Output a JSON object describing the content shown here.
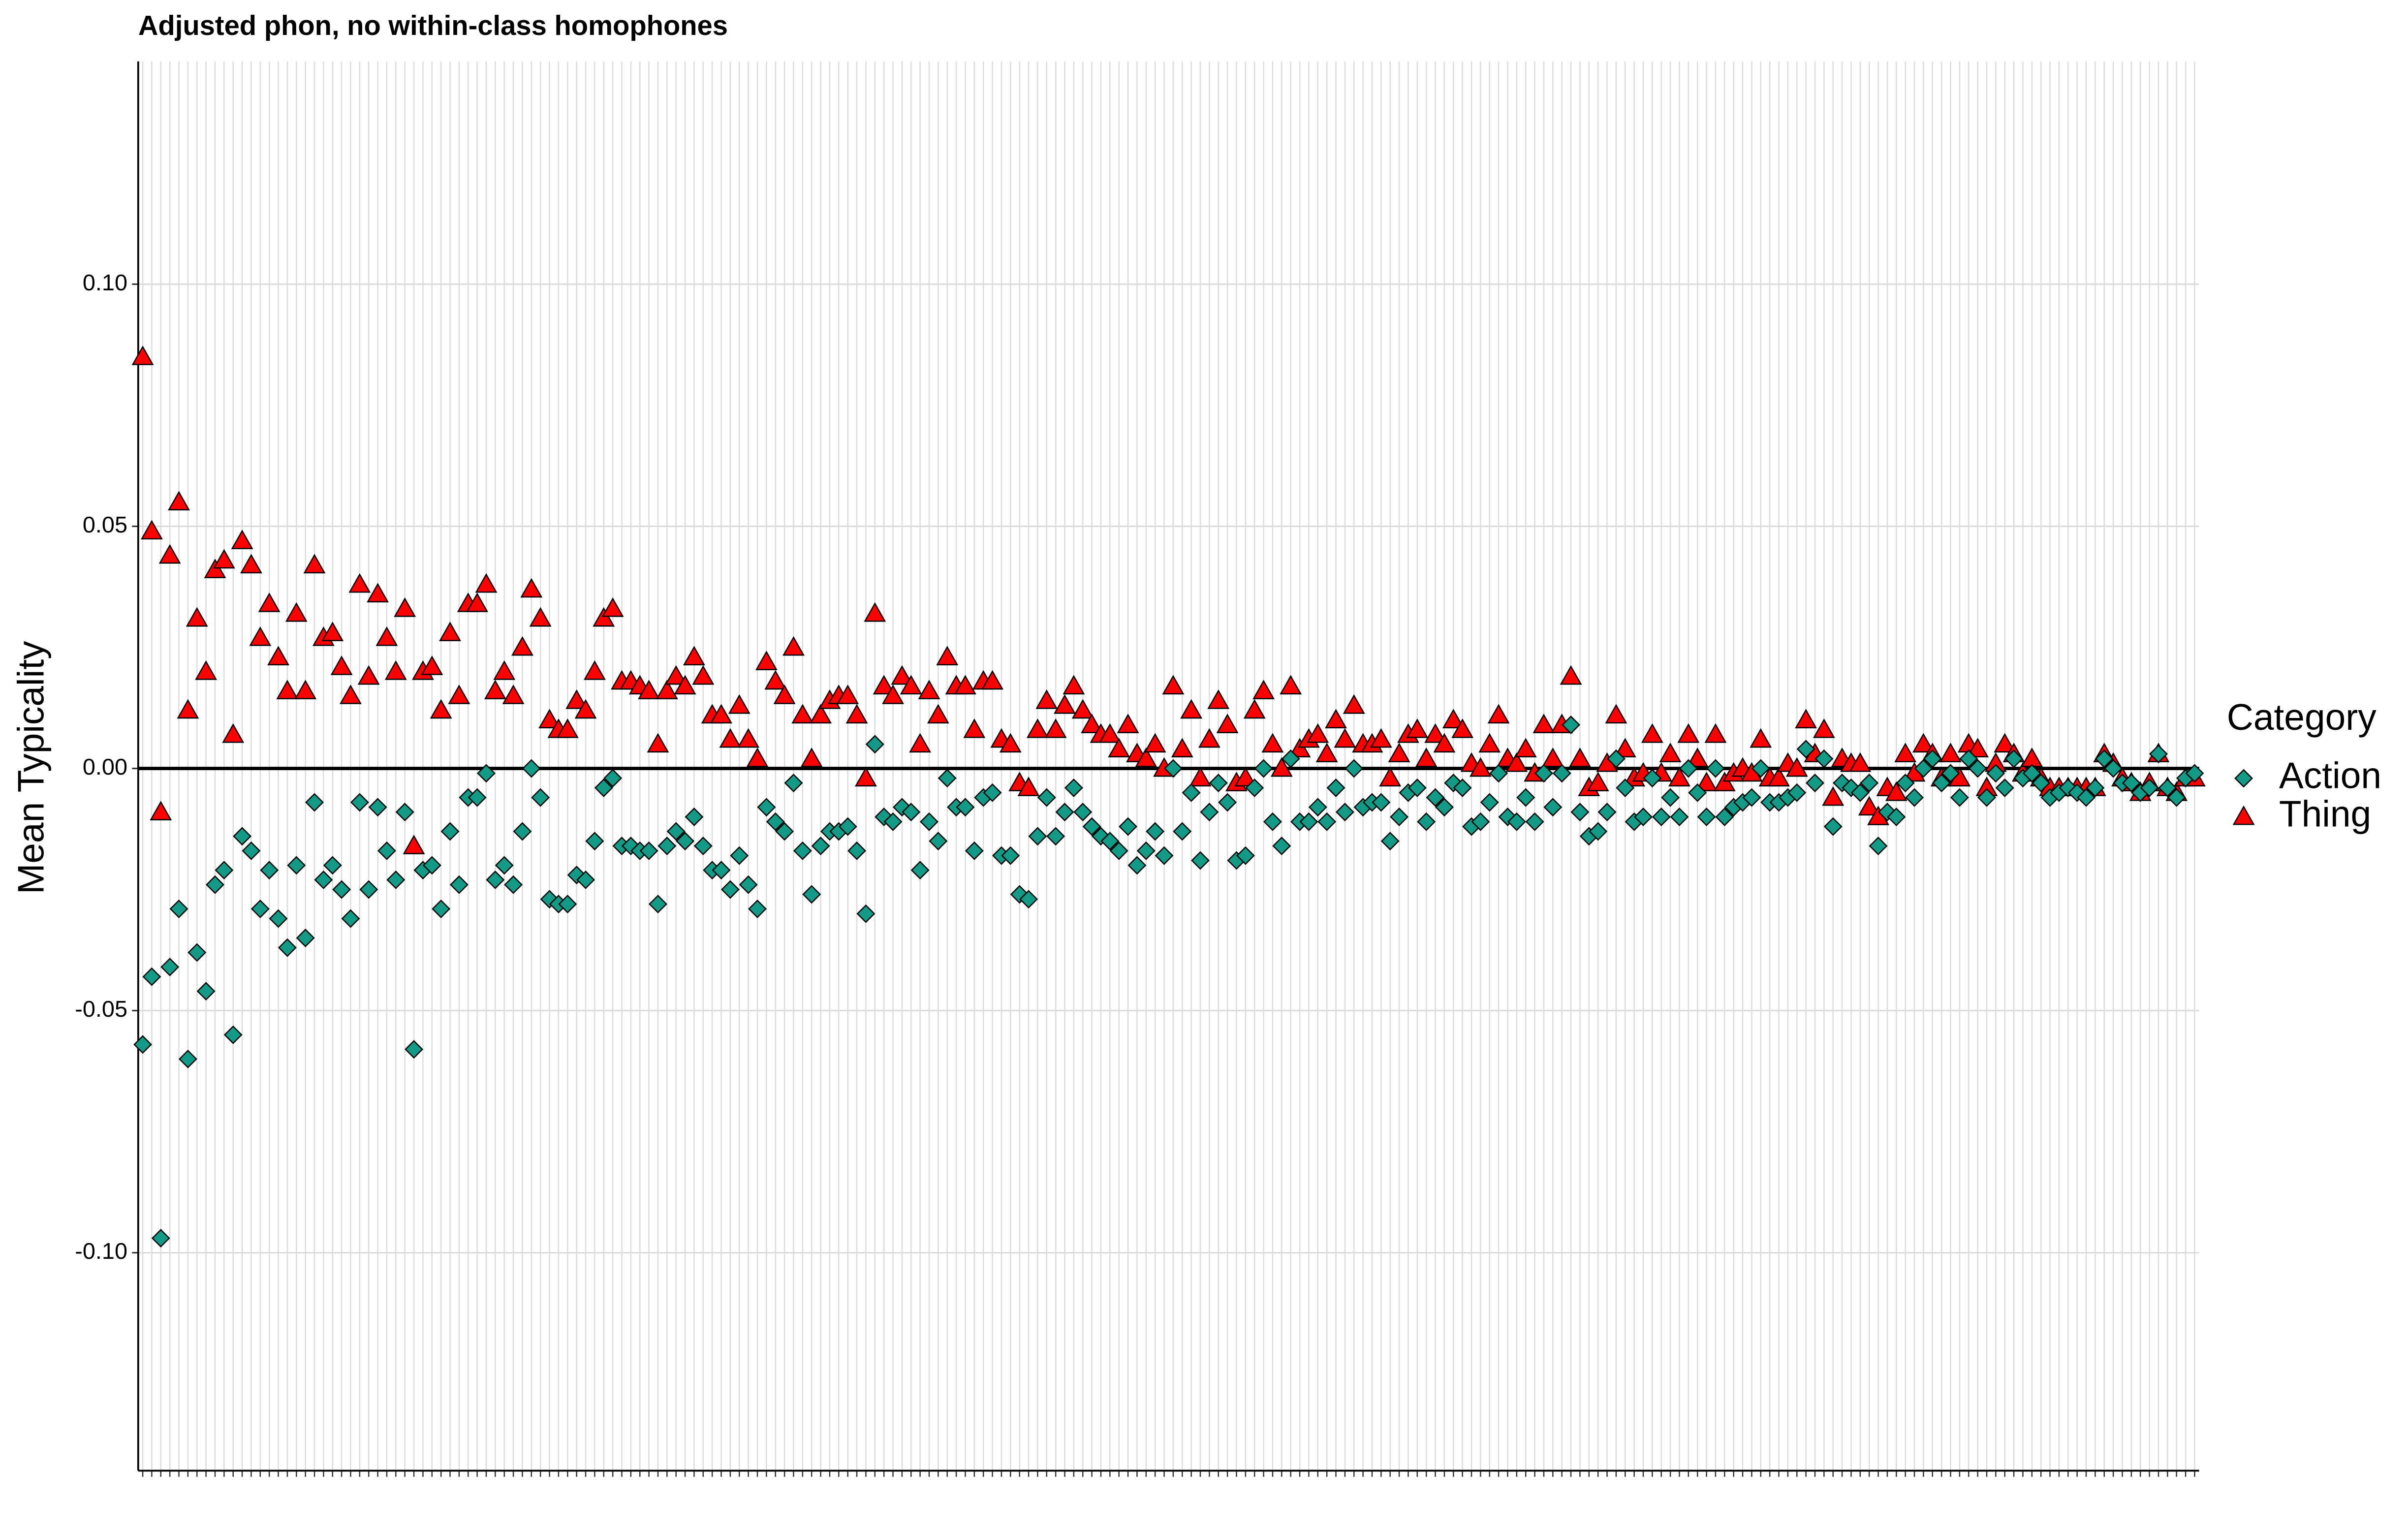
{
  "chart_data": {
    "type": "scatter",
    "title": "Adjusted phon, no within-class homophones",
    "y_label": "Mean Typicality",
    "legend_title": "Category",
    "legend_position": "right",
    "grid": true,
    "hline": 0,
    "ylim": [
      -0.145,
      0.146
    ],
    "yticks": [
      {
        "value": -0.1,
        "label": "-0.10"
      },
      {
        "value": -0.05,
        "label": "-0.05"
      },
      {
        "value": 0,
        "label": "0.00"
      },
      {
        "value": 0.05,
        "label": "0.05"
      },
      {
        "value": 0.1,
        "label": "0.10"
      }
    ],
    "categories": [
      null,
      null,
      null,
      null,
      null,
      null,
      null,
      null,
      null,
      null,
      null,
      null,
      null,
      null,
      null,
      null,
      null,
      null,
      null,
      null,
      null,
      null,
      null,
      null,
      null,
      null,
      null,
      null,
      null,
      null,
      null,
      null,
      null,
      null,
      null,
      null,
      null,
      null,
      null,
      null,
      null,
      null,
      null,
      null,
      null,
      null,
      null,
      null,
      null,
      null,
      null,
      null,
      null,
      null,
      null,
      null,
      null,
      null,
      null,
      null,
      null,
      null,
      null,
      null,
      null,
      null,
      null,
      null,
      null,
      null,
      null,
      null,
      null,
      null,
      null,
      null,
      null,
      null,
      null,
      null,
      null,
      null,
      null,
      null,
      null,
      null,
      null,
      null,
      null,
      null,
      null,
      null,
      null,
      null,
      null,
      null,
      null,
      null,
      null,
      null,
      null,
      null,
      null,
      null,
      null,
      null,
      null,
      null,
      null,
      null,
      null,
      null,
      null,
      null,
      null,
      null,
      null,
      null,
      null,
      null,
      null,
      null,
      null,
      null,
      null,
      null,
      null,
      null,
      null,
      null,
      null,
      null,
      null,
      null,
      null,
      null,
      null,
      null,
      null,
      null,
      null,
      null,
      null,
      null,
      null,
      null,
      null,
      null,
      null,
      null,
      null,
      null,
      null,
      null,
      null,
      null,
      null,
      null,
      null,
      null,
      null,
      null,
      null,
      null,
      null,
      null,
      null,
      null,
      null,
      null,
      null,
      null,
      null,
      null,
      null,
      null,
      null,
      null,
      null,
      null,
      null,
      null,
      null,
      null,
      null,
      null,
      null,
      null,
      null,
      null,
      null,
      null,
      null,
      null,
      null,
      null,
      null,
      null,
      null,
      null,
      null,
      null,
      null,
      null,
      null,
      null,
      null,
      null,
      null,
      null,
      null,
      null,
      null,
      null,
      null,
      null,
      null,
      null,
      null,
      null,
      null,
      null,
      null,
      null,
      null,
      null,
      null,
      null
    ],
    "series": [
      {
        "name": "Action",
        "color": "#139a86",
        "marker": "diamond",
        "values": [
          -0.057,
          -0.043,
          -0.097,
          -0.041,
          -0.029,
          -0.06,
          -0.038,
          -0.046,
          -0.024,
          -0.021,
          -0.055,
          -0.014,
          -0.017,
          -0.029,
          -0.021,
          -0.031,
          -0.037,
          -0.02,
          -0.035,
          -0.007,
          -0.023,
          -0.02,
          -0.025,
          -0.031,
          -0.007,
          -0.025,
          -0.008,
          -0.017,
          -0.023,
          -0.009,
          -0.058,
          -0.021,
          -0.02,
          -0.029,
          -0.013,
          -0.024,
          -0.006,
          -0.006,
          -0.001,
          -0.023,
          -0.02,
          -0.024,
          -0.013,
          0.0,
          -0.006,
          -0.027,
          -0.028,
          -0.028,
          -0.022,
          -0.023,
          -0.015,
          -0.004,
          -0.002,
          -0.016,
          -0.016,
          -0.017,
          -0.017,
          -0.028,
          -0.016,
          -0.013,
          -0.015,
          -0.01,
          -0.016,
          -0.021,
          -0.021,
          -0.025,
          -0.018,
          -0.024,
          -0.029,
          -0.008,
          -0.011,
          -0.013,
          -0.003,
          -0.017,
          -0.026,
          -0.016,
          -0.013,
          -0.013,
          -0.012,
          -0.017,
          -0.03,
          0.005,
          -0.01,
          -0.011,
          -0.008,
          -0.009,
          -0.021,
          -0.011,
          -0.015,
          -0.002,
          -0.008,
          -0.008,
          -0.017,
          -0.006,
          -0.005,
          -0.018,
          -0.018,
          -0.026,
          -0.027,
          -0.014,
          -0.006,
          -0.014,
          -0.009,
          -0.004,
          -0.009,
          -0.012,
          -0.014,
          -0.015,
          -0.017,
          -0.012,
          -0.02,
          -0.017,
          -0.013,
          -0.018,
          0.0,
          -0.013,
          -0.005,
          -0.019,
          -0.009,
          -0.003,
          -0.007,
          -0.019,
          -0.018,
          -0.004,
          0.0,
          -0.011,
          -0.016,
          0.002,
          -0.011,
          -0.011,
          -0.008,
          -0.011,
          -0.004,
          -0.009,
          0.0,
          -0.008,
          -0.007,
          -0.007,
          -0.015,
          -0.01,
          -0.005,
          -0.004,
          -0.011,
          -0.006,
          -0.008,
          -0.003,
          -0.004,
          -0.012,
          -0.011,
          -0.007,
          -0.001,
          -0.01,
          -0.011,
          -0.006,
          -0.011,
          -0.001,
          -0.008,
          -0.001,
          0.009,
          -0.009,
          -0.014,
          -0.013,
          -0.009,
          0.002,
          -0.004,
          -0.011,
          -0.01,
          -0.002,
          -0.01,
          -0.006,
          -0.01,
          0.0,
          -0.005,
          -0.01,
          0.0,
          -0.01,
          -0.008,
          -0.007,
          -0.006,
          0.0,
          -0.007,
          -0.007,
          -0.006,
          -0.005,
          0.004,
          -0.003,
          0.002,
          -0.012,
          -0.003,
          -0.004,
          -0.005,
          -0.003,
          -0.016,
          -0.009,
          -0.01,
          -0.003,
          -0.006,
          0.0,
          0.002,
          -0.003,
          -0.001,
          -0.006,
          0.002,
          0.0,
          -0.006,
          -0.001,
          -0.004,
          0.002,
          -0.002,
          -0.001,
          -0.003,
          -0.006,
          -0.005,
          -0.004,
          -0.005,
          -0.006,
          -0.004,
          0.002,
          0.0,
          -0.003,
          -0.003,
          -0.005,
          -0.004,
          0.003,
          -0.004,
          -0.006,
          -0.002,
          -0.001
        ]
      },
      {
        "name": "Thing",
        "color": "#ff0000",
        "marker": "triangle",
        "values": [
          0.085,
          0.049,
          -0.009,
          0.044,
          0.055,
          0.012,
          0.031,
          0.02,
          0.041,
          0.043,
          0.007,
          0.047,
          0.042,
          0.027,
          0.034,
          0.023,
          0.016,
          0.032,
          0.016,
          0.042,
          0.027,
          0.028,
          0.021,
          0.015,
          0.038,
          0.019,
          0.036,
          0.027,
          0.02,
          0.033,
          -0.016,
          0.02,
          0.021,
          0.012,
          0.028,
          0.015,
          0.034,
          0.034,
          0.038,
          0.016,
          0.02,
          0.015,
          0.025,
          0.037,
          0.031,
          0.01,
          0.008,
          0.008,
          0.014,
          0.012,
          0.02,
          0.031,
          0.033,
          0.018,
          0.018,
          0.017,
          0.016,
          0.005,
          0.016,
          0.019,
          0.017,
          0.023,
          0.019,
          0.011,
          0.011,
          0.006,
          0.013,
          0.006,
          0.002,
          0.022,
          0.018,
          0.015,
          0.025,
          0.011,
          0.002,
          0.011,
          0.014,
          0.015,
          0.015,
          0.011,
          -0.002,
          0.032,
          0.017,
          0.015,
          0.019,
          0.017,
          0.005,
          0.016,
          0.011,
          0.023,
          0.017,
          0.017,
          0.008,
          0.018,
          0.018,
          0.006,
          0.005,
          -0.003,
          -0.004,
          0.008,
          0.014,
          0.008,
          0.013,
          0.017,
          0.012,
          0.009,
          0.007,
          0.007,
          0.004,
          0.009,
          0.003,
          0.002,
          0.005,
          0.0,
          0.017,
          0.004,
          0.012,
          -0.002,
          0.006,
          0.014,
          0.009,
          -0.003,
          -0.002,
          0.012,
          0.016,
          0.005,
          0.0,
          0.017,
          0.004,
          0.006,
          0.007,
          0.003,
          0.01,
          0.006,
          0.013,
          0.005,
          0.005,
          0.006,
          -0.002,
          0.003,
          0.007,
          0.008,
          0.002,
          0.007,
          0.005,
          0.01,
          0.008,
          0.001,
          0.0,
          0.005,
          0.011,
          0.002,
          0.001,
          0.004,
          -0.001,
          0.009,
          0.002,
          0.009,
          0.019,
          0.002,
          -0.004,
          -0.003,
          0.001,
          0.011,
          0.004,
          -0.002,
          -0.001,
          0.007,
          -0.001,
          0.003,
          -0.002,
          0.007,
          0.002,
          -0.003,
          0.007,
          -0.003,
          -0.001,
          0.0,
          -0.001,
          0.006,
          -0.002,
          -0.002,
          0.001,
          0.0,
          0.01,
          0.003,
          0.008,
          -0.006,
          0.002,
          0.001,
          0.001,
          -0.008,
          -0.01,
          -0.004,
          -0.005,
          0.003,
          -0.001,
          0.005,
          0.003,
          -0.002,
          0.003,
          -0.002,
          0.005,
          0.004,
          -0.004,
          0.001,
          0.005,
          0.003,
          -0.001,
          0.002,
          -0.002,
          -0.004,
          -0.004,
          -0.004,
          -0.004,
          -0.004,
          -0.004,
          0.003,
          0.001,
          -0.002,
          -0.003,
          -0.005,
          -0.003,
          0.003,
          -0.004,
          -0.005,
          -0.002,
          -0.002
        ]
      }
    ]
  }
}
